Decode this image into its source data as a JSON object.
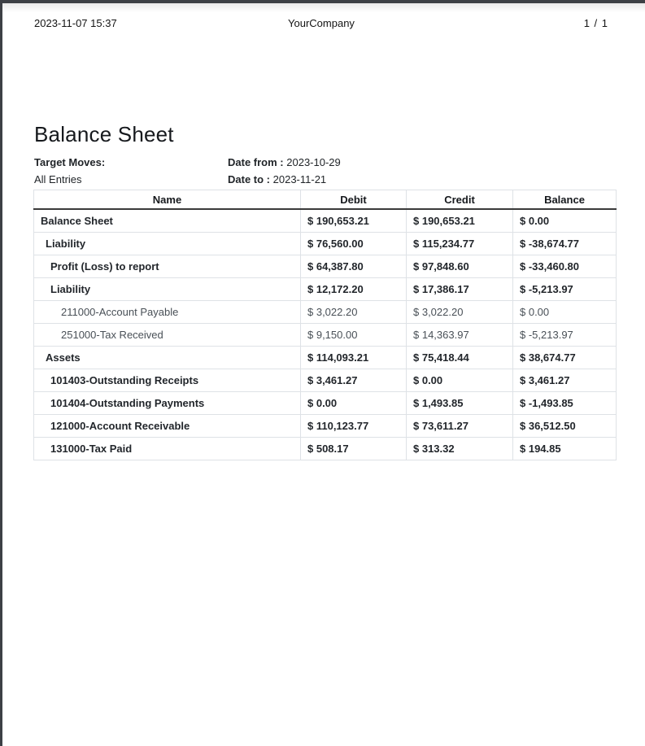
{
  "page_header": {
    "datetime": "2023-11-07 15:37",
    "company": "YourCompany",
    "page_number": "1 / 1"
  },
  "report": {
    "title": "Balance Sheet",
    "target_moves_label": "Target Moves:",
    "target_moves_value": "All Entries",
    "date_from_label": "Date from :",
    "date_from_value": "2023-10-29",
    "date_to_label": "Date to :",
    "date_to_value": "2023-11-21"
  },
  "table": {
    "columns": [
      "Name",
      "Debit",
      "Credit",
      "Balance"
    ],
    "rows": [
      {
        "name": "Balance Sheet",
        "debit": "$ 190,653.21",
        "credit": "$ 190,653.21",
        "balance": "$ 0.00",
        "level": 0,
        "bold": true
      },
      {
        "name": "Liability",
        "debit": "$ 76,560.00",
        "credit": "$ 115,234.77",
        "balance": "$ -38,674.77",
        "level": 1,
        "bold": true
      },
      {
        "name": "Profit (Loss) to report",
        "debit": "$ 64,387.80",
        "credit": "$ 97,848.60",
        "balance": "$ -33,460.80",
        "level": 2,
        "bold": true
      },
      {
        "name": "Liability",
        "debit": "$ 12,172.20",
        "credit": "$ 17,386.17",
        "balance": "$ -5,213.97",
        "level": 2,
        "bold": true
      },
      {
        "name": "211000-Account Payable",
        "debit": "$ 3,022.20",
        "credit": "$ 3,022.20",
        "balance": "$ 0.00",
        "level": 3,
        "bold": false
      },
      {
        "name": "251000-Tax Received",
        "debit": "$ 9,150.00",
        "credit": "$ 14,363.97",
        "balance": "$ -5,213.97",
        "level": 3,
        "bold": false
      },
      {
        "name": "Assets",
        "debit": "$ 114,093.21",
        "credit": "$ 75,418.44",
        "balance": "$ 38,674.77",
        "level": 1,
        "bold": true
      },
      {
        "name": "101403-Outstanding Receipts",
        "debit": "$ 3,461.27",
        "credit": "$ 0.00",
        "balance": "$ 3,461.27",
        "level": 2,
        "bold": true
      },
      {
        "name": "101404-Outstanding Payments",
        "debit": "$ 0.00",
        "credit": "$ 1,493.85",
        "balance": "$ -1,493.85",
        "level": 2,
        "bold": true
      },
      {
        "name": "121000-Account Receivable",
        "debit": "$ 110,123.77",
        "credit": "$ 73,611.27",
        "balance": "$ 36,512.50",
        "level": 2,
        "bold": true
      },
      {
        "name": "131000-Tax Paid",
        "debit": "$ 508.17",
        "credit": "$ 313.32",
        "balance": "$ 194.85",
        "level": 2,
        "bold": true
      }
    ]
  },
  "colors": {
    "frame_dark": "#3d4045",
    "border_light": "#dee2e6",
    "header_rule_dark": "#3a3a3a",
    "text_dark": "#22262b",
    "text_muted": "#495057"
  }
}
